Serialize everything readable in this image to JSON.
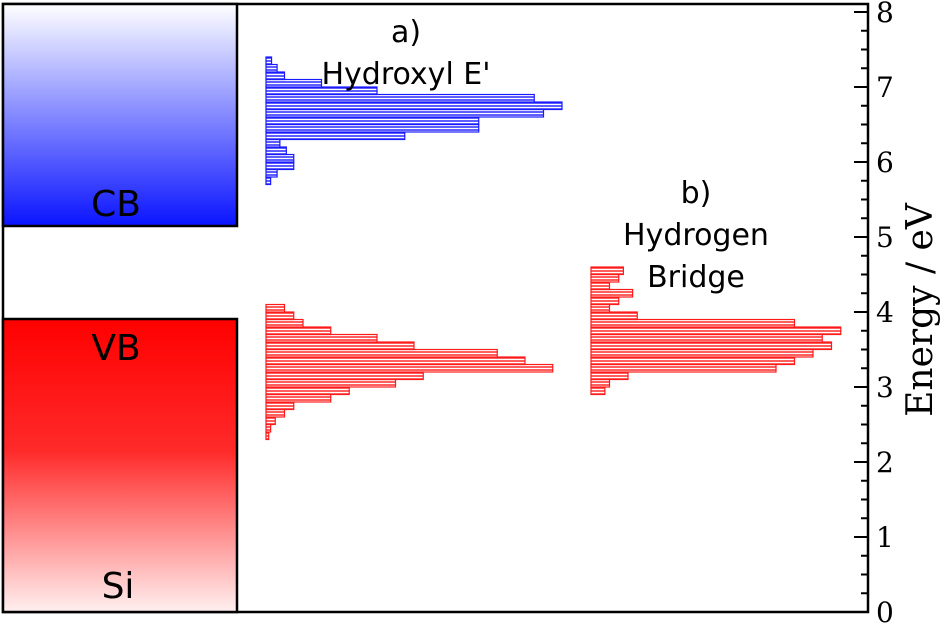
{
  "chart_data": {
    "type": "bar",
    "ylabel": "Energy / eV",
    "ylim": [
      0,
      8
    ],
    "y_ticks": [
      "0",
      "1",
      "2",
      "3",
      "4",
      "5",
      "6",
      "7",
      "8"
    ],
    "grid": false,
    "bands": {
      "cb": {
        "label": "CB",
        "range": [
          5.15,
          8.0
        ],
        "color_bottom": "#0a14ff",
        "color_top": "#ffffff"
      },
      "vb": {
        "label": "VB",
        "range": [
          0,
          3.92
        ],
        "color_top": "#ff0000",
        "color_bottom": "#fff0f0"
      },
      "material_label": "Si"
    },
    "annotations": {
      "a_letter": "a)",
      "a_name": "Hydroxyl E'",
      "b_letter": "b)",
      "b_name_1": "Hydrogen",
      "b_name_2": "Bridge"
    },
    "bin_width_ev": 0.1,
    "series": [
      {
        "name": "",
        "color": "#1a1aff",
        "bins_ev": [
          5.7,
          5.8,
          5.9,
          6.0,
          6.1,
          6.2,
          6.3,
          6.4,
          6.5,
          6.6,
          6.7,
          6.8,
          6.9,
          7.0,
          7.1,
          7.2,
          7.3
        ],
        "counts": [
          0.5,
          1.2,
          3.0,
          3.0,
          2.2,
          1.5,
          15.0,
          23.0,
          23.0,
          30.0,
          32.0,
          29.0,
          12.0,
          6.0,
          2.0,
          1.2,
          0.6
        ]
      },
      {
        "name": "",
        "color": "#ff1a1a",
        "bins_ev": [
          2.3,
          2.4,
          2.5,
          2.6,
          2.7,
          2.8,
          2.9,
          3.0,
          3.1,
          3.2,
          3.3,
          3.4,
          3.5,
          3.6,
          3.7,
          3.8,
          3.9,
          4.0
        ],
        "counts": [
          0.3,
          0.5,
          1.0,
          2.0,
          3.0,
          7.0,
          9.0,
          14.0,
          17.0,
          31.0,
          28.0,
          25.0,
          16.0,
          12.0,
          7.0,
          4.0,
          3.0,
          2.0
        ]
      },
      {
        "name": "",
        "color": "#ff1a1a",
        "bins_ev": [
          2.9,
          3.0,
          3.1,
          3.2,
          3.3,
          3.4,
          3.5,
          3.6,
          3.7,
          3.8,
          3.9,
          4.0,
          4.1,
          4.2,
          4.3,
          4.4,
          4.5
        ],
        "counts": [
          1.5,
          2.0,
          4.0,
          20.0,
          22.0,
          24.0,
          26.0,
          25.0,
          27.0,
          22.0,
          5.0,
          2.0,
          3.0,
          4.5,
          2.0,
          3.0,
          3.5
        ]
      }
    ]
  }
}
